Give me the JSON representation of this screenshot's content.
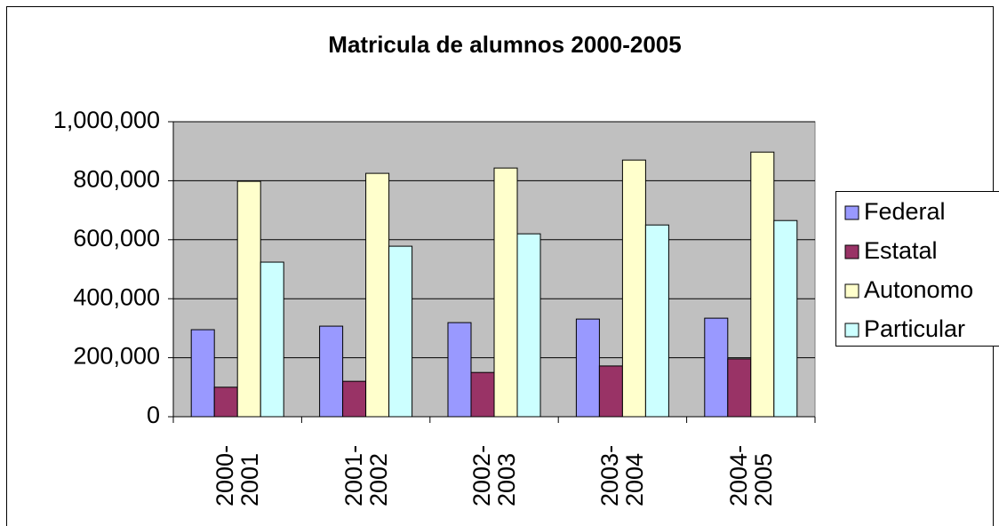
{
  "chart_data": {
    "type": "bar",
    "title": "Matricula  de alumnos 2000-2005",
    "categories": [
      "2000-2001",
      "2001-2002",
      "2002-2003",
      "2003-2004",
      "2004-2005"
    ],
    "series": [
      {
        "name": "Federal",
        "color": "#9999ff",
        "values": [
          295000,
          307000,
          319000,
          331000,
          334000
        ]
      },
      {
        "name": "Estatal",
        "color": "#993366",
        "values": [
          100000,
          120000,
          150000,
          172000,
          196000
        ]
      },
      {
        "name": "Autonomo",
        "color": "#ffffcc",
        "values": [
          798000,
          825000,
          843000,
          870000,
          897000
        ]
      },
      {
        "name": "Particular",
        "color": "#ccffff",
        "values": [
          524000,
          578000,
          620000,
          650000,
          665000
        ]
      }
    ],
    "ylim": [
      0,
      1000000
    ],
    "yticks": [
      0,
      {
        "value": 200000,
        "label": "200,000"
      },
      {
        "value": 400000,
        "label": "400,000"
      },
      {
        "value": 600000,
        "label": "600,000"
      },
      {
        "value": 800000,
        "label": "800,000"
      },
      {
        "value": 1000000,
        "label": "1,000,000"
      }
    ],
    "grid": true,
    "legend": "right"
  }
}
